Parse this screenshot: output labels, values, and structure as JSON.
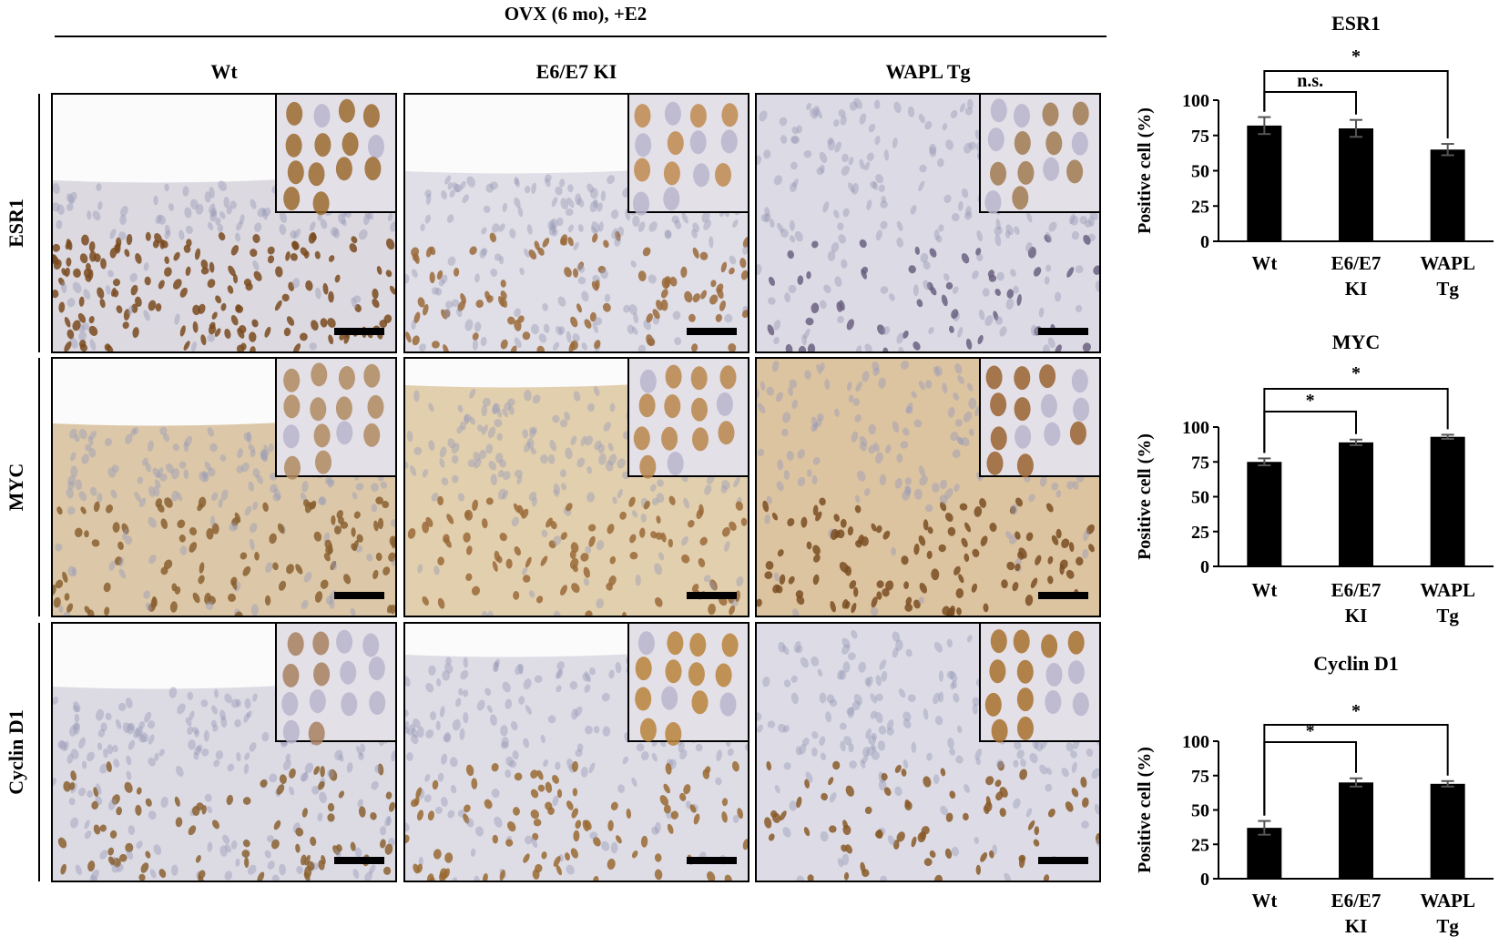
{
  "header": {
    "title": "OVX (6 mo), +E2"
  },
  "columns": [
    "Wt",
    "E6/E7 KI",
    "WAPL Tg"
  ],
  "rows": [
    "ESR1",
    "MYC",
    "Cyclin D1"
  ],
  "micrographs": [
    [
      {
        "stain": "ESR1",
        "genotype": "Wt",
        "nuclei_intensity": 0.85,
        "background": "#dcd9e0",
        "nucleus_color": "#7a4a1e",
        "inset_nucleus_color": "#9a6a2e"
      },
      {
        "stain": "ESR1",
        "genotype": "E6/E7 KI",
        "nuclei_intensity": 0.55,
        "background": "#e0dee6",
        "nucleus_color": "#9a6a3a",
        "inset_nucleus_color": "#c08a50"
      },
      {
        "stain": "ESR1",
        "genotype": "WAPL Tg",
        "nuclei_intensity": 0.5,
        "background": "#dcdae4",
        "nucleus_color": "#6a6080",
        "inset_nucleus_color": "#a07a50"
      }
    ],
    [
      {
        "stain": "MYC",
        "genotype": "Wt",
        "nuclei_intensity": 0.7,
        "background": "#dcc8a8",
        "nucleus_color": "#8a6030",
        "inset_nucleus_color": "#b08a60"
      },
      {
        "stain": "MYC",
        "genotype": "E6/E7 KI",
        "nuclei_intensity": 0.75,
        "background": "#e2cfae",
        "nucleus_color": "#9a6a38",
        "inset_nucleus_color": "#b8864a"
      },
      {
        "stain": "MYC",
        "genotype": "WAPL Tg",
        "nuclei_intensity": 0.85,
        "background": "#dcc4a0",
        "nucleus_color": "#7a4e22",
        "inset_nucleus_color": "#9a6230"
      }
    ],
    [
      {
        "stain": "Cyclin D1",
        "genotype": "Wt",
        "nuclei_intensity": 0.45,
        "background": "#dcdbe4",
        "nucleus_color": "#8a6030",
        "inset_nucleus_color": "#a88060"
      },
      {
        "stain": "Cyclin D1",
        "genotype": "E6/E7 KI",
        "nuclei_intensity": 0.7,
        "background": "#dedde6",
        "nucleus_color": "#9a6a30",
        "inset_nucleus_color": "#b8823a"
      },
      {
        "stain": "Cyclin D1",
        "genotype": "WAPL Tg",
        "nuclei_intensity": 0.65,
        "background": "#dddce6",
        "nucleus_color": "#8a5a28",
        "inset_nucleus_color": "#a8702e"
      }
    ]
  ],
  "chart_data": [
    {
      "type": "bar",
      "title": "ESR1",
      "ylabel": "Positive cell (%)",
      "xlabel": "",
      "ylim": [
        0,
        100
      ],
      "yticks": [
        0,
        25,
        50,
        75,
        100
      ],
      "categories": [
        [
          "Wt"
        ],
        [
          "E6/E7",
          "KI"
        ],
        [
          "WAPL",
          "Tg"
        ]
      ],
      "values": [
        82,
        80,
        65
      ],
      "errors": [
        6,
        6,
        4
      ],
      "bar_color": "#000000",
      "grid": false,
      "significance": [
        {
          "from": 0,
          "to": 1,
          "label": "n.s.",
          "level": "inner"
        },
        {
          "from": 0,
          "to": 2,
          "label": "*",
          "level": "outer"
        }
      ]
    },
    {
      "type": "bar",
      "title": "MYC",
      "ylabel": "Positive cell (%)",
      "xlabel": "",
      "ylim": [
        0,
        100
      ],
      "yticks": [
        0,
        25,
        50,
        75,
        100
      ],
      "categories": [
        [
          "Wt"
        ],
        [
          "E6/E7",
          "KI"
        ],
        [
          "WAPL",
          "Tg"
        ]
      ],
      "values": [
        75,
        89,
        93
      ],
      "errors": [
        2.5,
        2,
        1.5
      ],
      "bar_color": "#000000",
      "grid": false,
      "significance": [
        {
          "from": 0,
          "to": 1,
          "label": "*",
          "level": "inner"
        },
        {
          "from": 0,
          "to": 2,
          "label": "*",
          "level": "outer"
        }
      ]
    },
    {
      "type": "bar",
      "title": "Cyclin D1",
      "ylabel": "Positive cell (%)",
      "xlabel": "",
      "ylim": [
        0,
        100
      ],
      "yticks": [
        0,
        25,
        50,
        75,
        100
      ],
      "categories": [
        [
          "Wt"
        ],
        [
          "E6/E7",
          "KI"
        ],
        [
          "WAPL",
          "Tg"
        ]
      ],
      "values": [
        37,
        70,
        69
      ],
      "errors": [
        5,
        3,
        2
      ],
      "bar_color": "#000000",
      "grid": false,
      "significance": [
        {
          "from": 0,
          "to": 1,
          "label": "*",
          "level": "inner"
        },
        {
          "from": 0,
          "to": 2,
          "label": "*",
          "level": "outer"
        }
      ]
    }
  ]
}
